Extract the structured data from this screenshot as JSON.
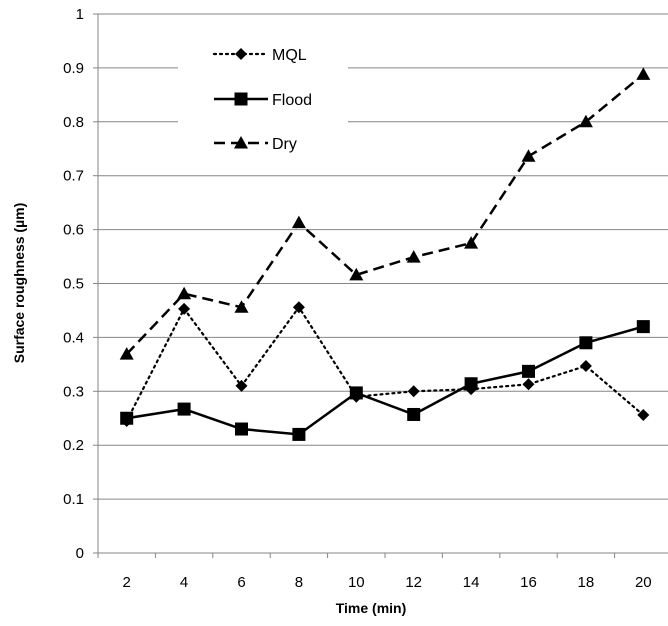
{
  "chart_data": {
    "type": "line",
    "xlabel": "Time (min)",
    "ylabel": "Surface roughness (µm)",
    "x": [
      2,
      4,
      6,
      8,
      10,
      12,
      14,
      16,
      18,
      20
    ],
    "xticks": [
      "2",
      "4",
      "6",
      "8",
      "10",
      "12",
      "14",
      "16",
      "18",
      "20"
    ],
    "ylim": [
      0,
      1
    ],
    "yticks": [
      "0",
      "0.1",
      "0.2",
      "0.3",
      "0.4",
      "0.5",
      "0.6",
      "0.7",
      "0.8",
      "0.9",
      "1"
    ],
    "grid": "horizontal",
    "legend_position": "top-left",
    "series": [
      {
        "name": "MQL",
        "marker": "diamond",
        "line_style": "dotted",
        "color": "#000000",
        "values": [
          0.245,
          0.453,
          0.31,
          0.456,
          0.29,
          0.3,
          0.304,
          0.313,
          0.347,
          0.256
        ]
      },
      {
        "name": "Flood",
        "marker": "square",
        "line_style": "solid",
        "color": "#000000",
        "values": [
          0.25,
          0.267,
          0.23,
          0.22,
          0.297,
          0.257,
          0.314,
          0.337,
          0.39,
          0.42
        ]
      },
      {
        "name": "Dry",
        "marker": "triangle",
        "line_style": "dashed",
        "color": "#000000",
        "values": [
          0.369,
          0.481,
          0.456,
          0.613,
          0.516,
          0.549,
          0.575,
          0.736,
          0.8,
          0.888
        ]
      }
    ]
  }
}
